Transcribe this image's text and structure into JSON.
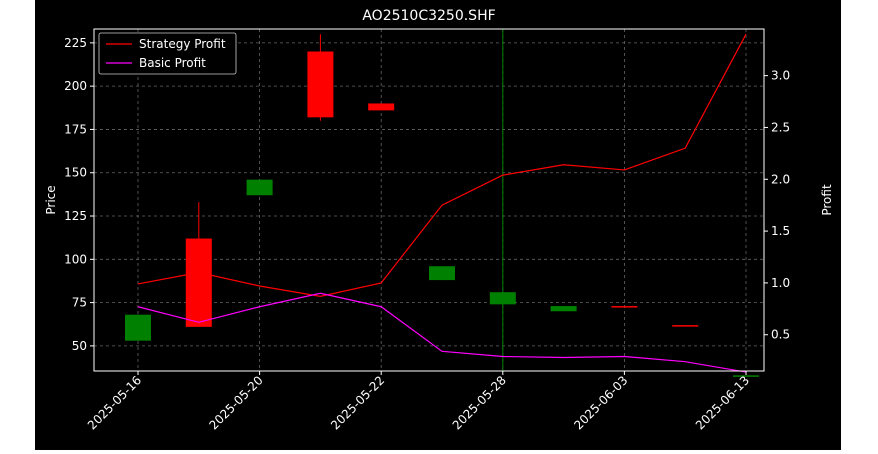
{
  "chart_data": {
    "type": "candlestick",
    "title": "AO2510C3250.SHF",
    "ylabel_left": "Price",
    "ylabel_right": "Profit",
    "xlabel": "",
    "grid": true,
    "legend_position": "top-left",
    "x_tick_labels": [
      "2025-05-16",
      "2025-05-20",
      "2025-05-22",
      "2025-05-28",
      "2025-06-03",
      "2025-06-13"
    ],
    "y_left_ticks": [
      50,
      75,
      100,
      125,
      150,
      175,
      200,
      225
    ],
    "y_right_ticks": [
      0.5,
      1.0,
      1.5,
      2.0,
      2.5,
      3.0
    ],
    "ylim_left": [
      35.5,
      233
    ],
    "ylim_right": [
      0.15,
      3.45
    ],
    "vertical_marker_index": 6,
    "candles": [
      {
        "open": 53,
        "high": 68,
        "low": 53,
        "close": 68
      },
      {
        "open": 112,
        "high": 133,
        "low": 61,
        "close": 61
      },
      {
        "open": 137,
        "high": 146,
        "low": 137,
        "close": 146
      },
      {
        "open": 220,
        "high": 230,
        "low": 180,
        "close": 182
      },
      {
        "open": 190,
        "high": 190,
        "low": 186,
        "close": 186
      },
      {
        "open": 88,
        "high": 96,
        "low": 88,
        "close": 96
      },
      {
        "open": 74,
        "high": 81,
        "low": 74,
        "close": 81
      },
      {
        "open": 70,
        "high": 73,
        "low": 70,
        "close": 73
      },
      {
        "open": 73,
        "high": 73,
        "low": 72.5,
        "close": 72.5
      },
      {
        "open": 62,
        "high": 62,
        "low": 61.5,
        "close": 61.5
      },
      {
        "open": 33,
        "high": 33,
        "low": 33,
        "close": 33
      }
    ],
    "series": [
      {
        "name": "Strategy Profit",
        "color": "#ff0000",
        "values": [
          0.99,
          1.1,
          0.97,
          0.87,
          1.0,
          1.75,
          2.04,
          2.14,
          2.09,
          2.3,
          3.4
        ]
      },
      {
        "name": "Basic Profit",
        "color": "#ff00ff",
        "values": [
          0.77,
          0.62,
          0.77,
          0.9,
          0.77,
          0.34,
          0.29,
          0.28,
          0.29,
          0.24,
          0.14
        ]
      }
    ],
    "colors": {
      "background": "#000000",
      "up": "#008000",
      "down": "#ff0000",
      "marker": "#008000",
      "text": "#ffffff",
      "grid": "#666666"
    }
  }
}
